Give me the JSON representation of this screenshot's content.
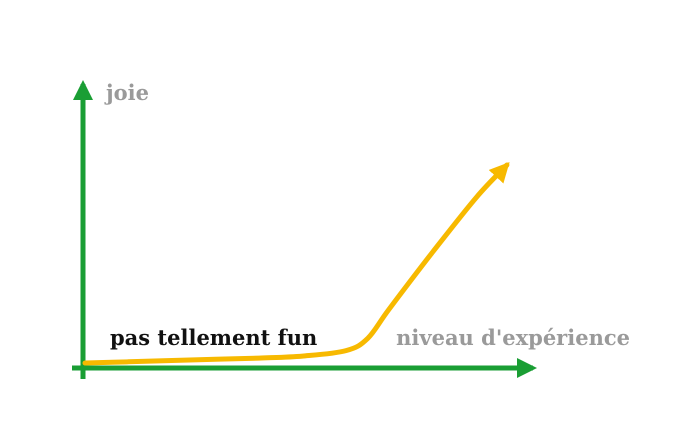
{
  "chart_data": {
    "type": "line",
    "title": "",
    "ylabel": "joie",
    "xlabel": "niveau d'expérience",
    "annotation": "pas tellement fun",
    "grid": false,
    "legend": "none",
    "axis_color": "#1a9e34",
    "series": [
      {
        "color": "#f7b900",
        "x": [
          0.0,
          0.1,
          0.2,
          0.3,
          0.4,
          0.5,
          0.6,
          0.65,
          0.7,
          0.8,
          0.9,
          0.97
        ],
        "y": [
          0.0,
          0.005,
          0.01,
          0.015,
          0.02,
          0.028,
          0.05,
          0.1,
          0.22,
          0.45,
          0.67,
          0.8
        ]
      }
    ]
  }
}
